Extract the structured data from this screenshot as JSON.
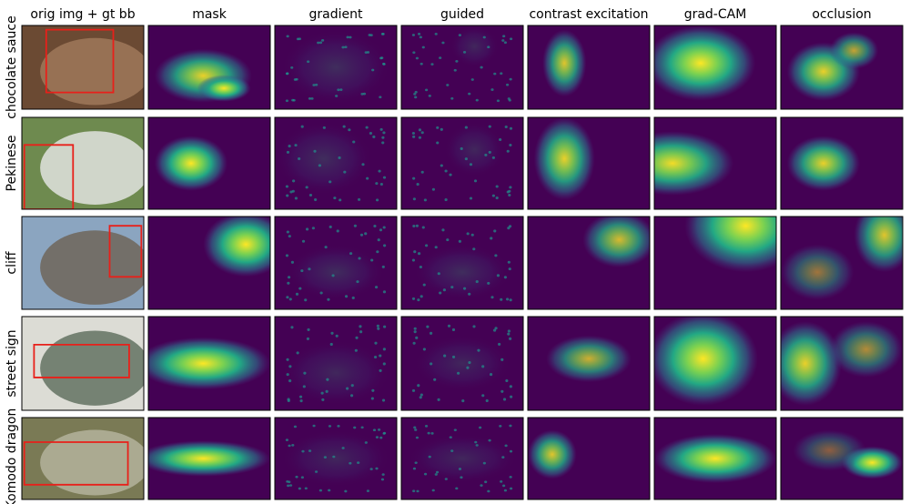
{
  "columns": [
    "orig img + gt bb",
    "mask",
    "gradient",
    "guided",
    "contrast excitation",
    "grad-CAM",
    "occlusion"
  ],
  "rows": [
    "chocolate sauce",
    "Pekinese",
    "cliff",
    "street sign",
    "Komodo dragon"
  ]
}
